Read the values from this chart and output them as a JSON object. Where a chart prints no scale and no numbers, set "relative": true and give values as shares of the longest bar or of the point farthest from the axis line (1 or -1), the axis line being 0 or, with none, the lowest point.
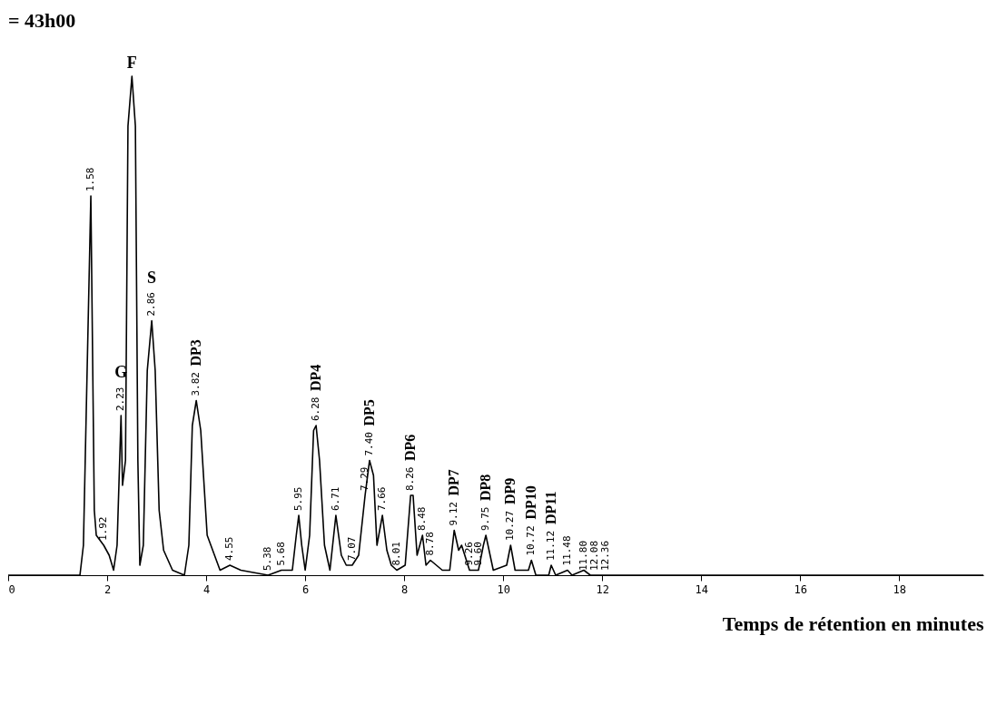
{
  "chart_data": {
    "type": "line",
    "title": "= 43h00",
    "xlabel": "Temps de rétention en minutes",
    "relative": true,
    "color": "#000000",
    "xlim": [
      0,
      19.7
    ],
    "xticks": [
      0,
      2,
      4,
      6,
      8,
      10,
      12,
      14,
      16,
      18
    ],
    "x": [
      0,
      1.45,
      1.52,
      1.67,
      1.74,
      1.78,
      1.93,
      2.04,
      2.13,
      2.2,
      2.28,
      2.31,
      2.37,
      2.42,
      2.5,
      2.57,
      2.62,
      2.66,
      2.73,
      2.81,
      2.9,
      2.97,
      3.05,
      3.14,
      3.32,
      3.56,
      3.65,
      3.72,
      3.8,
      3.89,
      4.02,
      4.28,
      4.48,
      4.7,
      5.25,
      5.52,
      5.74,
      5.82,
      5.87,
      5.93,
      6.0,
      6.09,
      6.17,
      6.22,
      6.29,
      6.39,
      6.5,
      6.62,
      6.73,
      6.83,
      6.95,
      7.08,
      7.21,
      7.3,
      7.38,
      7.45,
      7.56,
      7.65,
      7.74,
      7.85,
      8.02,
      8.13,
      8.18,
      8.26,
      8.37,
      8.44,
      8.53,
      8.77,
      8.92,
      9.01,
      9.1,
      9.16,
      9.32,
      9.5,
      9.6,
      9.65,
      9.8,
      10.07,
      10.15,
      10.24,
      10.51,
      10.57,
      10.66,
      10.92,
      10.97,
      11.06,
      11.3,
      11.39,
      11.63,
      11.76,
      11.85,
      12.07,
      19.7
    ],
    "values": [
      0,
      0,
      0.06,
      0.76,
      0.13,
      0.08,
      0.06,
      0.04,
      0.01,
      0.06,
      0.32,
      0.18,
      0.23,
      0.9,
      1,
      0.9,
      0.23,
      0.02,
      0.06,
      0.41,
      0.51,
      0.41,
      0.13,
      0.05,
      0.01,
      0,
      0.06,
      0.3,
      0.35,
      0.29,
      0.08,
      0.01,
      0.02,
      0.01,
      0,
      0.01,
      0.01,
      0.08,
      0.12,
      0.06,
      0.01,
      0.08,
      0.29,
      0.3,
      0.23,
      0.06,
      0.01,
      0.12,
      0.04,
      0.02,
      0.02,
      0.04,
      0.16,
      0.23,
      0.2,
      0.06,
      0.12,
      0.05,
      0.02,
      0.01,
      0.02,
      0.16,
      0.16,
      0.04,
      0.08,
      0.02,
      0.03,
      0.01,
      0.01,
      0.09,
      0.05,
      0.06,
      0.01,
      0.01,
      0.06,
      0.08,
      0.01,
      0.02,
      0.06,
      0.01,
      0.01,
      0.03,
      0,
      0,
      0.02,
      0,
      0.01,
      0,
      0.01,
      0,
      0,
      0,
      0
    ],
    "annotations": [
      {
        "text": "1.58",
        "x": 1.67,
        "y": 0.76
      },
      {
        "text": "1.92",
        "x": 1.93,
        "y": 0.06
      },
      {
        "text": "2.23",
        "x": 2.28,
        "y": 0.32
      },
      {
        "text": "G",
        "x": 2.28,
        "y": 0.32
      },
      {
        "text": "F",
        "x": 2.5,
        "y": 1
      },
      {
        "text": "2.86",
        "x": 2.9,
        "y": 0.51
      },
      {
        "text": "S",
        "x": 2.9,
        "y": 0.51
      },
      {
        "text": "3.82",
        "x": 3.8,
        "y": 0.35
      },
      {
        "text": "DP3",
        "x": 3.8,
        "y": 0.35
      },
      {
        "text": "4.55",
        "x": 4.48,
        "y": 0.02
      },
      {
        "text": "5.38",
        "x": 5.25,
        "y": 0
      },
      {
        "text": "5.68",
        "x": 5.52,
        "y": 0.01
      },
      {
        "text": "5.95",
        "x": 5.87,
        "y": 0.12
      },
      {
        "text": "6.28",
        "x": 6.22,
        "y": 0.3
      },
      {
        "text": "DP4",
        "x": 6.22,
        "y": 0.3
      },
      {
        "text": "6.71",
        "x": 6.62,
        "y": 0.12
      },
      {
        "text": "7.07",
        "x": 6.95,
        "y": 0.02
      },
      {
        "text": "7.29",
        "x": 7.21,
        "y": 0.16
      },
      {
        "text": "7.40",
        "x": 7.3,
        "y": 0.23
      },
      {
        "text": "DP5",
        "x": 7.3,
        "y": 0.23
      },
      {
        "text": "7.66",
        "x": 7.56,
        "y": 0.12
      },
      {
        "text": "8.01",
        "x": 7.85,
        "y": 0.01
      },
      {
        "text": "8.26",
        "x": 8.13,
        "y": 0.16
      },
      {
        "text": "DP6",
        "x": 8.13,
        "y": 0.16
      },
      {
        "text": "8.48",
        "x": 8.37,
        "y": 0.08
      },
      {
        "text": "8.78",
        "x": 8.53,
        "y": 0.03
      },
      {
        "text": "9.12",
        "x": 9.01,
        "y": 0.09
      },
      {
        "text": "DP7",
        "x": 9.01,
        "y": 0.09
      },
      {
        "text": "9.26",
        "x": 9.32,
        "y": 0.01
      },
      {
        "text": "9.60",
        "x": 9.5,
        "y": 0.01
      },
      {
        "text": "9.75",
        "x": 9.65,
        "y": 0.08
      },
      {
        "text": "DP8",
        "x": 9.65,
        "y": 0.08
      },
      {
        "text": "10.27",
        "x": 10.15,
        "y": 0.06
      },
      {
        "text": "DP9",
        "x": 10.15,
        "y": 0.06
      },
      {
        "text": "10.72",
        "x": 10.57,
        "y": 0.03
      },
      {
        "text": "DP10",
        "x": 10.57,
        "y": 0.03
      },
      {
        "text": "11.12",
        "x": 10.97,
        "y": 0.02
      },
      {
        "text": "DP11",
        "x": 10.97,
        "y": 0.02
      },
      {
        "text": "11.48",
        "x": 11.3,
        "y": 0.01
      },
      {
        "text": "11.80",
        "x": 11.63,
        "y": 0
      },
      {
        "text": "12.08",
        "x": 11.85,
        "y": 0
      },
      {
        "text": "12.36",
        "x": 12.07,
        "y": 0
      }
    ]
  }
}
